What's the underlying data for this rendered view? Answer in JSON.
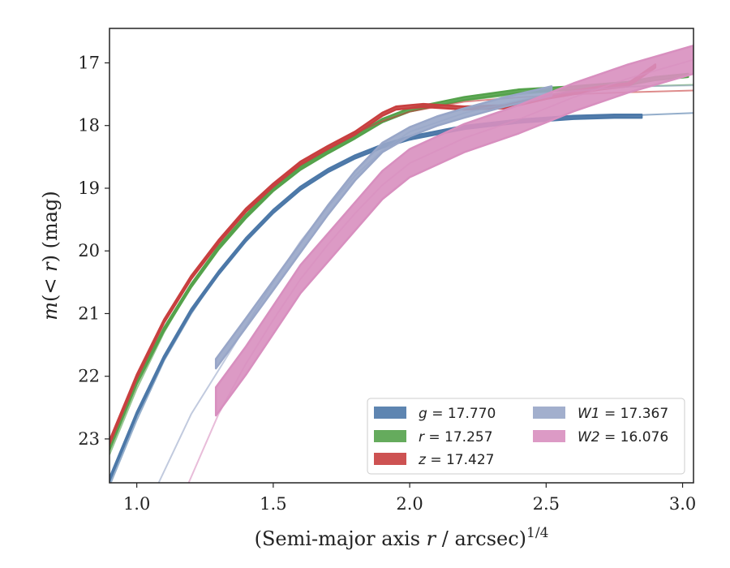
{
  "chart_data": {
    "type": "line",
    "xlabel": "(Semi-major axis r / arcsec)",
    "xlabel_parts": {
      "pre": "(Semi-major axis ",
      "var": "r",
      "post": " / arcsec)",
      "exp": "1/4"
    },
    "ylabel_parts": {
      "m": "m",
      "mid": "(< ",
      "r": "r",
      "post": ") (mag)"
    },
    "xlim": [
      0.9,
      3.04
    ],
    "ylim": [
      23.7,
      16.45
    ],
    "y_inverted": true,
    "xticks": [
      "1.0",
      "1.5",
      "2.0",
      "2.5",
      "3.0"
    ],
    "xtick_values": [
      1.0,
      1.5,
      2.0,
      2.5,
      3.0
    ],
    "yticks": [
      "17",
      "18",
      "19",
      "20",
      "21",
      "22",
      "23"
    ],
    "ytick_values": [
      17,
      18,
      19,
      20,
      21,
      22,
      23
    ],
    "grid": false,
    "legend_position": "lower-right",
    "series": [
      {
        "name": "g",
        "label_value": "17.770",
        "color": "#4c78a8",
        "band_width": 0.05,
        "model": [
          [
            0.9,
            23.75
          ],
          [
            1.0,
            22.7
          ],
          [
            1.1,
            21.75
          ],
          [
            1.2,
            21.0
          ],
          [
            1.3,
            20.35
          ],
          [
            1.4,
            19.8
          ],
          [
            1.5,
            19.35
          ],
          [
            1.6,
            19.0
          ],
          [
            1.7,
            18.72
          ],
          [
            1.8,
            18.5
          ],
          [
            1.9,
            18.33
          ],
          [
            2.0,
            18.2
          ],
          [
            2.2,
            18.03
          ],
          [
            2.4,
            17.93
          ],
          [
            2.6,
            17.87
          ],
          [
            2.8,
            17.84
          ],
          [
            3.04,
            17.8
          ]
        ],
        "profile": [
          [
            0.9,
            23.65
          ],
          [
            1.0,
            22.6
          ],
          [
            1.1,
            21.7
          ],
          [
            1.2,
            20.95
          ],
          [
            1.3,
            20.35
          ],
          [
            1.4,
            19.82
          ],
          [
            1.5,
            19.37
          ],
          [
            1.6,
            19.0
          ],
          [
            1.7,
            18.72
          ],
          [
            1.8,
            18.5
          ],
          [
            1.9,
            18.33
          ],
          [
            2.0,
            18.2
          ],
          [
            2.2,
            18.03
          ],
          [
            2.4,
            17.93
          ],
          [
            2.6,
            17.87
          ],
          [
            2.75,
            17.85
          ],
          [
            2.85,
            17.85
          ]
        ]
      },
      {
        "name": "r",
        "label_value": "17.257",
        "color": "#54a24b",
        "band_width": 0.05,
        "model": [
          [
            0.9,
            23.25
          ],
          [
            1.0,
            22.2
          ],
          [
            1.1,
            21.3
          ],
          [
            1.2,
            20.55
          ],
          [
            1.3,
            19.95
          ],
          [
            1.4,
            19.45
          ],
          [
            1.5,
            19.02
          ],
          [
            1.6,
            18.68
          ],
          [
            1.7,
            18.42
          ],
          [
            1.8,
            18.18
          ],
          [
            1.9,
            17.95
          ],
          [
            2.0,
            17.78
          ],
          [
            2.2,
            17.6
          ],
          [
            2.4,
            17.5
          ],
          [
            2.6,
            17.43
          ],
          [
            2.8,
            17.38
          ],
          [
            3.04,
            17.35
          ]
        ],
        "profile": [
          [
            0.9,
            23.15
          ],
          [
            1.0,
            22.1
          ],
          [
            1.1,
            21.25
          ],
          [
            1.2,
            20.55
          ],
          [
            1.3,
            19.95
          ],
          [
            1.4,
            19.45
          ],
          [
            1.5,
            19.02
          ],
          [
            1.6,
            18.68
          ],
          [
            1.7,
            18.42
          ],
          [
            1.8,
            18.18
          ],
          [
            1.9,
            17.92
          ],
          [
            2.0,
            17.75
          ],
          [
            2.2,
            17.57
          ],
          [
            2.4,
            17.45
          ],
          [
            2.6,
            17.4
          ],
          [
            2.8,
            17.33
          ],
          [
            2.9,
            17.25
          ],
          [
            3.02,
            17.2
          ]
        ]
      },
      {
        "name": "z",
        "label_value": "17.427",
        "color": "#c83f3f",
        "band_width": 0.05,
        "model": [
          [
            0.9,
            23.1
          ],
          [
            1.0,
            22.05
          ],
          [
            1.1,
            21.15
          ],
          [
            1.2,
            20.45
          ],
          [
            1.3,
            19.85
          ],
          [
            1.4,
            19.35
          ],
          [
            1.5,
            18.95
          ],
          [
            1.6,
            18.6
          ],
          [
            1.7,
            18.35
          ],
          [
            1.8,
            18.12
          ],
          [
            1.9,
            17.93
          ],
          [
            2.0,
            17.78
          ],
          [
            2.2,
            17.62
          ],
          [
            2.4,
            17.55
          ],
          [
            2.6,
            17.5
          ],
          [
            2.8,
            17.47
          ],
          [
            3.04,
            17.44
          ]
        ],
        "profile": [
          [
            0.9,
            23.05
          ],
          [
            1.0,
            22.0
          ],
          [
            1.1,
            21.12
          ],
          [
            1.2,
            20.42
          ],
          [
            1.3,
            19.85
          ],
          [
            1.4,
            19.35
          ],
          [
            1.5,
            18.95
          ],
          [
            1.6,
            18.6
          ],
          [
            1.7,
            18.35
          ],
          [
            1.8,
            18.12
          ],
          [
            1.9,
            17.82
          ],
          [
            1.95,
            17.72
          ],
          [
            2.05,
            17.68
          ],
          [
            2.2,
            17.72
          ],
          [
            2.35,
            17.7
          ],
          [
            2.5,
            17.55
          ],
          [
            2.7,
            17.4
          ],
          [
            2.8,
            17.35
          ],
          [
            2.9,
            17.05
          ]
        ]
      },
      {
        "name": "W1",
        "label_value": "17.367",
        "color": "#98a6c8",
        "band_width": 0.15,
        "model": [
          [
            1.08,
            23.7
          ],
          [
            1.2,
            22.6
          ],
          [
            1.3,
            21.9
          ],
          [
            1.4,
            21.2
          ],
          [
            1.5,
            20.5
          ],
          [
            1.6,
            19.85
          ],
          [
            1.7,
            19.3
          ],
          [
            1.8,
            18.8
          ],
          [
            1.9,
            18.4
          ],
          [
            2.0,
            18.1
          ],
          [
            2.2,
            17.8
          ],
          [
            2.4,
            17.6
          ],
          [
            2.6,
            17.45
          ],
          [
            2.8,
            17.38
          ],
          [
            3.04,
            17.36
          ]
        ],
        "profile": [
          [
            1.29,
            21.8
          ],
          [
            1.4,
            21.15
          ],
          [
            1.5,
            20.55
          ],
          [
            1.6,
            19.95
          ],
          [
            1.7,
            19.35
          ],
          [
            1.8,
            18.8
          ],
          [
            1.9,
            18.35
          ],
          [
            2.0,
            18.1
          ],
          [
            2.1,
            17.93
          ],
          [
            2.2,
            17.8
          ],
          [
            2.35,
            17.62
          ],
          [
            2.52,
            17.45
          ]
        ]
      },
      {
        "name": "W2",
        "label_value": "16.076",
        "color": "#d88fbf",
        "band_width": 0.45,
        "model": [
          [
            1.19,
            23.7
          ],
          [
            1.3,
            22.6
          ],
          [
            1.4,
            21.8
          ],
          [
            1.5,
            21.1
          ],
          [
            1.6,
            20.45
          ],
          [
            1.7,
            19.9
          ],
          [
            1.8,
            19.4
          ],
          [
            1.9,
            18.95
          ],
          [
            2.0,
            18.6
          ],
          [
            2.2,
            18.2
          ],
          [
            2.4,
            17.9
          ],
          [
            2.6,
            17.55
          ],
          [
            2.8,
            17.25
          ],
          [
            3.04,
            16.95
          ]
        ],
        "profile": [
          [
            1.29,
            22.4
          ],
          [
            1.4,
            21.75
          ],
          [
            1.5,
            21.1
          ],
          [
            1.6,
            20.45
          ],
          [
            1.7,
            19.95
          ],
          [
            1.8,
            19.45
          ],
          [
            1.9,
            18.95
          ],
          [
            2.0,
            18.6
          ],
          [
            2.2,
            18.2
          ],
          [
            2.4,
            17.9
          ],
          [
            2.6,
            17.55
          ],
          [
            2.8,
            17.25
          ],
          [
            3.04,
            16.95
          ]
        ]
      }
    ]
  }
}
